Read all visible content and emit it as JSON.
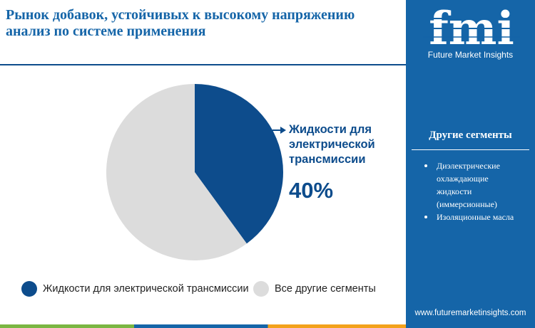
{
  "header": {
    "title": "Рынок добавок, устойчивых к высокому напряжению анализ по системе применения"
  },
  "brand": {
    "logo_text": "fmi",
    "name": "Future Market Insights",
    "website": "www.futuremarketinsights.com"
  },
  "sidebar": {
    "other_title": "Другие сегменты",
    "segments": [
      "Диэлектрические охлаждающие жидкости (иммерсионные)",
      "Изоляционные масла"
    ]
  },
  "callout": {
    "label": "Жидкости для электрической трансмиссии",
    "value": "40%"
  },
  "chart_data": {
    "type": "pie",
    "title": "",
    "slices": [
      {
        "label": "Жидкости для электрической трансмиссии",
        "value": 40,
        "color": "#0d4c8c"
      },
      {
        "label": "Все другие сегменты",
        "value": 60,
        "color": "#dcdcdc"
      }
    ],
    "start": "top",
    "direction": "clockwise",
    "legend_position": "bottom"
  },
  "legend": {
    "items": [
      {
        "label": "Жидкости для электрической трансмиссии",
        "color": "#0d4c8c"
      },
      {
        "label": "Все другие сегменты",
        "color": "#dcdcdc"
      }
    ]
  },
  "colors": {
    "accent": "#1565a8",
    "primary_slice": "#0d4c8c",
    "secondary_slice": "#dcdcdc"
  }
}
